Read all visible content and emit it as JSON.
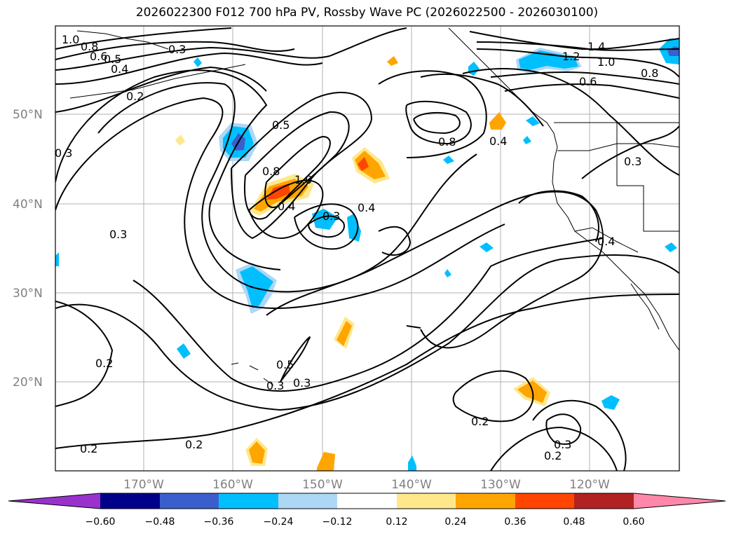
{
  "title": "2026022300 F012 700 hPa PV, Rossby Wave PC (2026022500 - 2026030100)",
  "lat_labels": [
    "50°N",
    "40°N",
    "30°N",
    "20°N"
  ],
  "lon_labels": [
    "170°W",
    "160°W",
    "150°W",
    "140°W",
    "130°W",
    "120°W"
  ],
  "colorbar": {
    "ticks": [
      "−0.60",
      "−0.48",
      "−0.36",
      "−0.24",
      "−0.12",
      "0.12",
      "0.24",
      "0.36",
      "0.48",
      "0.60"
    ],
    "colors": [
      "#9932cc",
      "#00008b",
      "#3a5fcd",
      "#00bfff",
      "#add8f5",
      "#ffffff",
      "#ffe88c",
      "#ffa500",
      "#ff4500",
      "#b22222",
      "#ff88aa"
    ]
  },
  "contour_labels": [
    {
      "text": "1.0"
    },
    {
      "text": "0.8"
    },
    {
      "text": "0.6"
    },
    {
      "text": "0.5"
    },
    {
      "text": "0.4"
    },
    {
      "text": "0.3"
    },
    {
      "text": "0.2"
    },
    {
      "text": "0.5"
    },
    {
      "text": "0.8"
    },
    {
      "text": "1.0"
    },
    {
      "text": "0.4"
    },
    {
      "text": "0.3"
    },
    {
      "text": "0.4"
    },
    {
      "text": "0.8"
    },
    {
      "text": "0.4"
    },
    {
      "text": "0.3"
    },
    {
      "text": "1.4"
    },
    {
      "text": "1.2"
    },
    {
      "text": "1.0"
    },
    {
      "text": "0.8"
    },
    {
      "text": "0.6"
    },
    {
      "text": "0.3"
    },
    {
      "text": "0.4"
    },
    {
      "text": "0.3"
    },
    {
      "text": "0.3"
    },
    {
      "text": "0.2"
    },
    {
      "text": "0.5"
    },
    {
      "text": "0.3"
    },
    {
      "text": "0.2"
    },
    {
      "text": "0.2"
    },
    {
      "text": "0.2"
    },
    {
      "text": "0.3"
    },
    {
      "text": "0.2"
    }
  ]
}
